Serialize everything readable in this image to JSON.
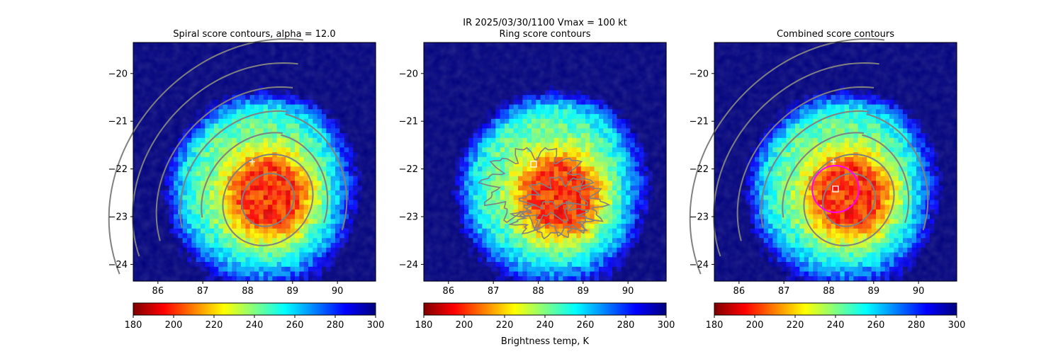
{
  "figure": {
    "suptitle_line1": "IR  2025/03/30/1100    Vmax = 100 kt",
    "colorbar_label": "Brightness temp, K"
  },
  "colormap": [
    "#7f0000",
    "#ff0000",
    "#ff8000",
    "#ffff00",
    "#80ff80",
    "#00ffff",
    "#0080ff",
    "#0000ff",
    "#00007f"
  ],
  "contour_color": "#808080",
  "ring_color": "#ff00ff",
  "chart_data": [
    {
      "type": "heatmap",
      "title": "Spiral score contours, alpha = 12.0",
      "x_ticks": [
        "86",
        "87",
        "88",
        "89",
        "90"
      ],
      "y_ticks": [
        "−20",
        "−21",
        "−22",
        "−23",
        "−24"
      ],
      "xlim": [
        85.45,
        90.85
      ],
      "ylim": [
        -24.35,
        -19.35
      ],
      "colorbar": {
        "range": [
          180,
          300
        ],
        "ticks": [
          "180",
          "200",
          "220",
          "240",
          "260",
          "280",
          "300"
        ]
      },
      "storm_center": [
        88.45,
        -22.55
      ],
      "cold_core_k": 200,
      "first_guess_marker": [
        88.1,
        -21.85
      ],
      "contours": "spiral"
    },
    {
      "type": "heatmap",
      "title": "Ring score contours",
      "x_ticks": [
        "86",
        "87",
        "88",
        "89",
        "90"
      ],
      "y_ticks": [
        "−20",
        "−21",
        "−22",
        "−23",
        "−24"
      ],
      "xlim": [
        85.45,
        90.85
      ],
      "ylim": [
        -24.35,
        -19.35
      ],
      "colorbar": {
        "range": [
          180,
          300
        ],
        "ticks": [
          "180",
          "200",
          "220",
          "240",
          "260",
          "280",
          "300"
        ]
      },
      "storm_center": [
        88.45,
        -22.55
      ],
      "cold_core_k": 200,
      "best_score_marker": [
        87.9,
        -21.9
      ],
      "contours": "ring"
    },
    {
      "type": "heatmap",
      "title": "Combined score contours",
      "x_ticks": [
        "86",
        "87",
        "88",
        "89",
        "90"
      ],
      "y_ticks": [
        "−20",
        "−21",
        "−22",
        "−23",
        "−24"
      ],
      "xlim": [
        85.45,
        90.85
      ],
      "ylim": [
        -24.35,
        -19.35
      ],
      "colorbar": {
        "range": [
          180,
          300
        ],
        "ticks": [
          "180",
          "200",
          "220",
          "240",
          "260",
          "280",
          "300"
        ]
      },
      "storm_center": [
        88.45,
        -22.55
      ],
      "cold_core_k": 200,
      "first_guess_marker": [
        88.1,
        -21.85
      ],
      "best_score_marker": [
        88.15,
        -22.42
      ],
      "ring_center": [
        88.15,
        -22.42
      ],
      "ring_radius_deg": 0.52,
      "contours": "spiral+center"
    }
  ]
}
